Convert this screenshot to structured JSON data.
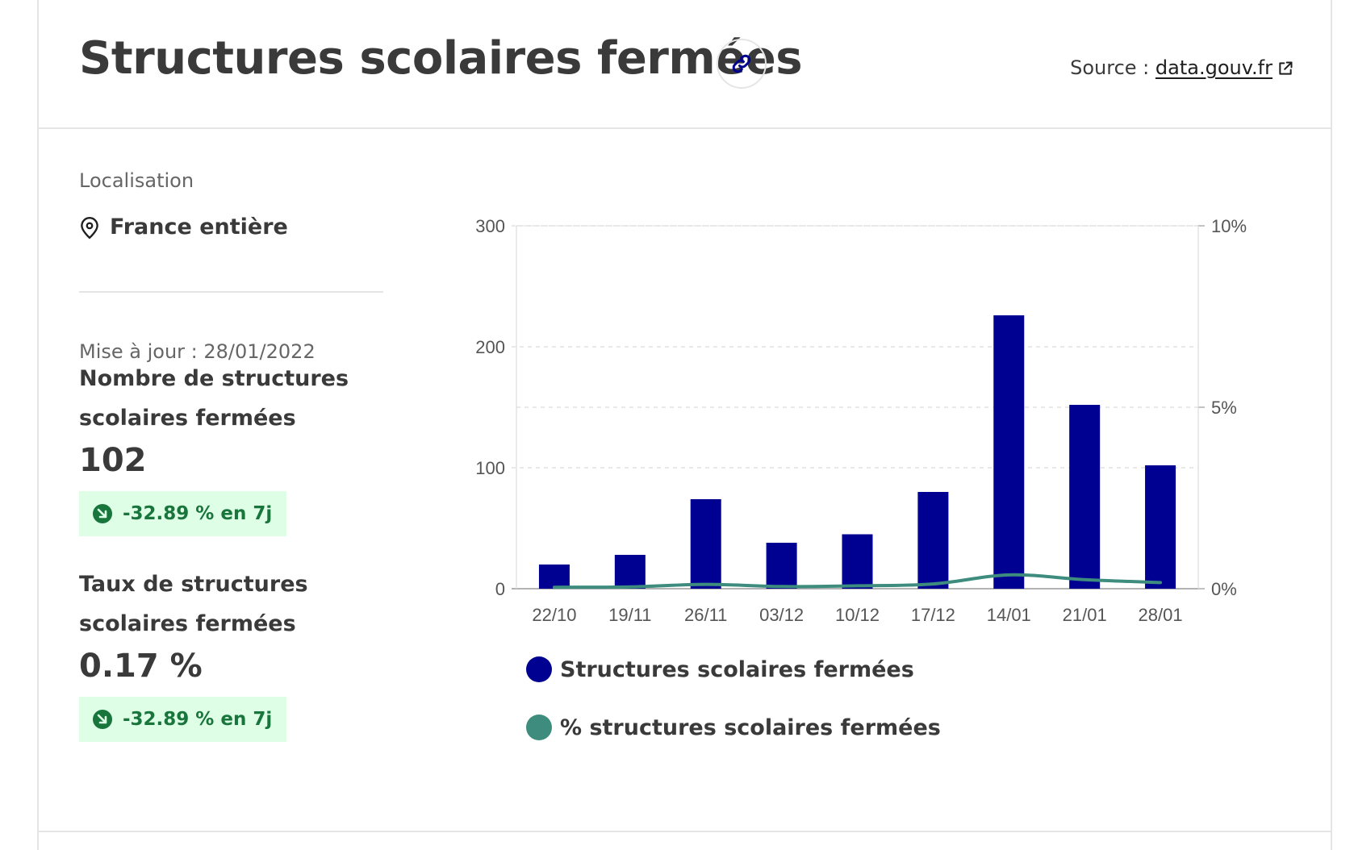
{
  "header": {
    "title": "Structures scolaires fermées",
    "source_label": "Source :",
    "source_link": "data.gouv.fr"
  },
  "sidebar": {
    "location_label": "Localisation",
    "location_value": "France entière",
    "updated": "Mise à jour : 28/01/2022",
    "metrics": [
      {
        "label": "Nombre de structures scolaires fermées",
        "value": "102",
        "change": "-32.89 % en 7j"
      },
      {
        "label": "Taux de structures scolaires fermées",
        "value": "0.17 %",
        "change": "-32.89 % en 7j"
      }
    ]
  },
  "colors": {
    "bar": "#000091",
    "line": "#3d8c7e",
    "badge_bg": "#dffee6",
    "badge_text": "#18753c"
  },
  "chart_data": {
    "type": "bar",
    "categories": [
      "22/10",
      "19/11",
      "26/11",
      "03/12",
      "10/12",
      "17/12",
      "14/01",
      "21/01",
      "28/01"
    ],
    "series": [
      {
        "name": "Structures scolaires fermées",
        "type": "bar",
        "axis": "left",
        "values": [
          20,
          28,
          74,
          38,
          45,
          80,
          226,
          152,
          102
        ]
      },
      {
        "name": "% structures scolaires fermées",
        "type": "line",
        "axis": "right",
        "values": [
          0.04,
          0.05,
          0.12,
          0.06,
          0.08,
          0.13,
          0.38,
          0.25,
          0.17
        ]
      }
    ],
    "y_left": {
      "ylim": [
        0,
        300
      ],
      "ticks": [
        "0",
        "100",
        "200",
        "300"
      ]
    },
    "y_right": {
      "ylim": [
        0,
        10
      ],
      "ticks": [
        "0%",
        "5%",
        "10%"
      ]
    },
    "grid": true,
    "legend": "bottom-left"
  }
}
